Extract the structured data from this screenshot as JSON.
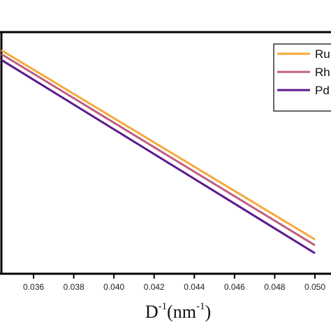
{
  "chart_data": {
    "type": "line",
    "xlabel": {
      "main1": "D",
      "sup1": "-1",
      "main2": "(nm",
      "sup2": "-1",
      "main3": ")"
    },
    "xlim": [
      0.0344,
      0.0508
    ],
    "ylim": [
      0,
      1
    ],
    "x_ticks": [
      0.036,
      0.038,
      0.04,
      0.042,
      0.044,
      0.046,
      0.048,
      0.05
    ],
    "x_tick_labels": [
      "0.036",
      "0.038",
      "0.040",
      "0.042",
      "0.044",
      "0.046",
      "0.048",
      "0.050"
    ],
    "grid": false,
    "legend_position": "top-right",
    "series": [
      {
        "name": "Ru",
        "color": "#f5a93c",
        "x": [
          0.0344,
          0.05
        ],
        "y": [
          0.925,
          0.142
        ]
      },
      {
        "name": "Rh",
        "color": "#c05f7f",
        "x": [
          0.0344,
          0.05
        ],
        "y": [
          0.909,
          0.118
        ]
      },
      {
        "name": "Pd",
        "color": "#5b1a8e",
        "x": [
          0.0344,
          0.05
        ],
        "y": [
          0.885,
          0.085
        ]
      }
    ]
  }
}
